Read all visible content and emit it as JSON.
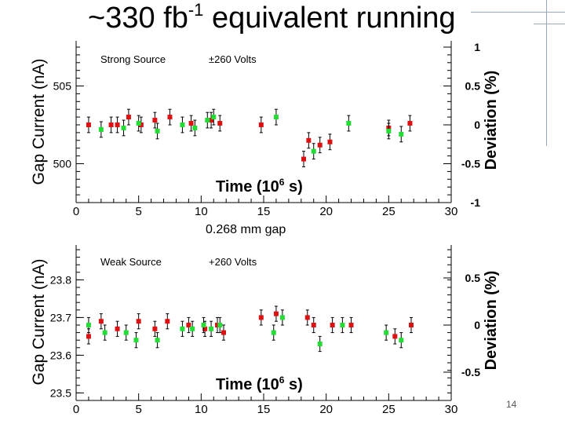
{
  "slide": {
    "title_prefix": "~330 fb",
    "title_exp": "-1",
    "title_suffix": " equivalent running",
    "gap_caption": "0.268 mm gap",
    "page_number": "14"
  },
  "colors": {
    "red": "#dd1111",
    "green": "#22dd33",
    "axis": "#000000"
  },
  "chart_data": [
    {
      "type": "scatter",
      "panel": "top",
      "annotation_left": "Strong Source",
      "annotation_right": "±260 Volts",
      "xlabel": "Time (10",
      "xlabel_exp": "6",
      "xlabel_suffix": " s)",
      "ylabel": "Gap Current (nA)",
      "ylabel_right": "Deviation (%)",
      "xlim": [
        0,
        30
      ],
      "ylim": [
        497.5,
        507.5
      ],
      "right_ylim": [
        -1,
        1
      ],
      "x_ticks": [
        "0",
        "5",
        "10",
        "15",
        "20",
        "25",
        "30"
      ],
      "x_tick_values": [
        0,
        5,
        10,
        15,
        20,
        25,
        30
      ],
      "y_ticks": [
        "500",
        "505"
      ],
      "y_tick_values": [
        500,
        505
      ],
      "right_ticks": [
        "1",
        "0.5",
        "0",
        "-0.5",
        "-1"
      ],
      "right_tick_values": [
        1,
        0.5,
        0,
        -0.5,
        -1
      ],
      "series": [
        {
          "color": "#dd1111",
          "x": [
            1,
            2.8,
            3.3,
            4.2,
            5.2,
            6.3,
            7.5,
            9.2,
            10.8,
            11.5,
            14.8,
            18.2,
            18.6,
            19.5,
            20.3,
            25,
            26.7
          ],
          "y": [
            502.5,
            502.5,
            502.5,
            503,
            502.5,
            502.8,
            503,
            502.6,
            502.8,
            502.6,
            502.5,
            500.3,
            501.5,
            501.2,
            501.4,
            502.3,
            502.6
          ],
          "err": [
            0.5,
            0.5,
            0.5,
            0.5,
            0.5,
            0.5,
            0.5,
            0.5,
            0.5,
            0.5,
            0.5,
            0.5,
            0.5,
            0.5,
            0.5,
            0.5,
            0.5
          ]
        },
        {
          "color": "#22dd33",
          "x": [
            2,
            3.8,
            5,
            6.5,
            8.5,
            9.5,
            10.5,
            11,
            16,
            19,
            21.8,
            25,
            26
          ],
          "y": [
            502.2,
            502.3,
            502.6,
            502.1,
            502.5,
            502.3,
            502.8,
            503,
            503,
            500.8,
            502.6,
            502.1,
            501.9
          ],
          "err": [
            0.5,
            0.5,
            0.5,
            0.5,
            0.5,
            0.5,
            0.5,
            0.5,
            0.5,
            0.5,
            0.5,
            0.5,
            0.5
          ]
        }
      ]
    },
    {
      "type": "scatter",
      "panel": "bottom",
      "annotation_left": "Weak Source",
      "annotation_right": "+260 Volts",
      "xlabel": "Time (10",
      "xlabel_exp": "6",
      "xlabel_suffix": " s)",
      "ylabel": "Gap Current (nA)",
      "ylabel_right": "Deviation (%)",
      "xlim": [
        0,
        30
      ],
      "ylim": [
        23.48,
        23.88
      ],
      "right_ylim": [
        -0.8,
        0.8
      ],
      "x_ticks": [
        "0",
        "5",
        "10",
        "15",
        "20",
        "25",
        "30"
      ],
      "x_tick_values": [
        0,
        5,
        10,
        15,
        20,
        25,
        30
      ],
      "y_ticks": [
        "23.5",
        "23.6",
        "23.7",
        "23.8"
      ],
      "y_tick_values": [
        23.5,
        23.6,
        23.7,
        23.8
      ],
      "right_ticks": [
        "0.5",
        "0",
        "-0.5"
      ],
      "right_tick_values": [
        0.5,
        0,
        -0.5
      ],
      "series": [
        {
          "color": "#dd1111",
          "x": [
            1,
            2,
            3.3,
            5,
            6.3,
            7.3,
            9,
            10.3,
            11.3,
            11.8,
            14.8,
            16,
            18.5,
            19,
            20.5,
            22,
            25.5,
            26.8
          ],
          "y": [
            23.65,
            23.69,
            23.67,
            23.69,
            23.67,
            23.69,
            23.68,
            23.67,
            23.68,
            23.66,
            23.7,
            23.71,
            23.7,
            23.68,
            23.68,
            23.68,
            23.65,
            23.68
          ],
          "err": [
            0.02,
            0.02,
            0.02,
            0.02,
            0.02,
            0.02,
            0.02,
            0.02,
            0.02,
            0.02,
            0.02,
            0.02,
            0.02,
            0.02,
            0.02,
            0.02,
            0.02,
            0.02
          ]
        },
        {
          "color": "#22dd33",
          "x": [
            1,
            2.3,
            4,
            4.8,
            6.5,
            8.5,
            9.3,
            10.2,
            10.8,
            11.5,
            15.8,
            16.5,
            19.5,
            21.3,
            24.8,
            26
          ],
          "y": [
            23.68,
            23.66,
            23.66,
            23.64,
            23.64,
            23.67,
            23.67,
            23.68,
            23.67,
            23.68,
            23.66,
            23.7,
            23.63,
            23.68,
            23.66,
            23.64
          ],
          "err": [
            0.02,
            0.02,
            0.02,
            0.02,
            0.02,
            0.02,
            0.02,
            0.02,
            0.02,
            0.02,
            0.02,
            0.02,
            0.02,
            0.02,
            0.02,
            0.02
          ]
        }
      ]
    }
  ]
}
